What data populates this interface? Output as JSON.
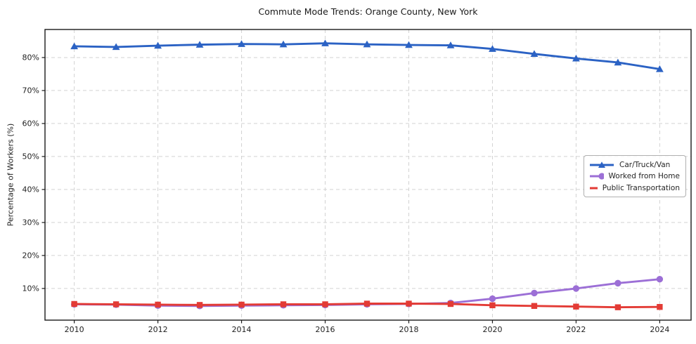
{
  "title": "Commute Mode Trends: Orange County, New York",
  "axes": {
    "y_label": "Percentage of Workers (%)",
    "x_tick_labels": [
      "2010",
      "2012",
      "2014",
      "2016",
      "2018",
      "2020",
      "2022",
      "2024"
    ],
    "y_tick_labels": [
      "10%",
      "20%",
      "30%",
      "40%",
      "50%",
      "60%",
      "70%",
      "80%"
    ]
  },
  "colors": {
    "car_line": "#2b62c4",
    "wfh_line": "#9c6fd6",
    "transit_line": "#e33b35",
    "gridline": "#d2d2d2",
    "spine": "#1a1a1a",
    "tick_text": "#1f1f1f",
    "legend_border": "#b0b0b0"
  },
  "chart_data": {
    "type": "line",
    "title": "Commute Mode Trends: Orange County, New York",
    "xlabel": "",
    "ylabel": "Percentage of Workers (%)",
    "x": [
      2010,
      2011,
      2012,
      2013,
      2014,
      2015,
      2016,
      2017,
      2018,
      2019,
      2020,
      2021,
      2022,
      2023,
      2024
    ],
    "x_ticks": [
      2010,
      2012,
      2014,
      2016,
      2018,
      2020,
      2022,
      2024
    ],
    "y_ticks": [
      10,
      20,
      30,
      40,
      50,
      60,
      70,
      80
    ],
    "y_tick_suffix": "%",
    "xlim": [
      2009.3,
      2024.75
    ],
    "ylim": [
      0.4,
      88.5
    ],
    "grid": true,
    "grid_style": "dashed",
    "legend_position": "center-right",
    "series": [
      {
        "name": "Car/Truck/Van",
        "color": "#2b62c4",
        "marker": "triangle",
        "values": [
          83.4,
          83.2,
          83.6,
          83.9,
          84.1,
          84.0,
          84.3,
          84.0,
          83.8,
          83.7,
          82.6,
          81.1,
          79.7,
          78.5,
          76.5
        ]
      },
      {
        "name": "Worked from Home",
        "color": "#9c6fd6",
        "marker": "circle",
        "values": [
          5.2,
          5.1,
          4.8,
          4.7,
          4.8,
          4.9,
          5.0,
          5.2,
          5.3,
          5.6,
          6.9,
          8.6,
          10.0,
          11.6,
          12.8
        ]
      },
      {
        "name": "Public Transportation",
        "color": "#e33b35",
        "marker": "square",
        "values": [
          5.3,
          5.2,
          5.1,
          5.0,
          5.1,
          5.2,
          5.2,
          5.4,
          5.4,
          5.3,
          4.9,
          4.7,
          4.5,
          4.3,
          4.4
        ]
      }
    ]
  }
}
